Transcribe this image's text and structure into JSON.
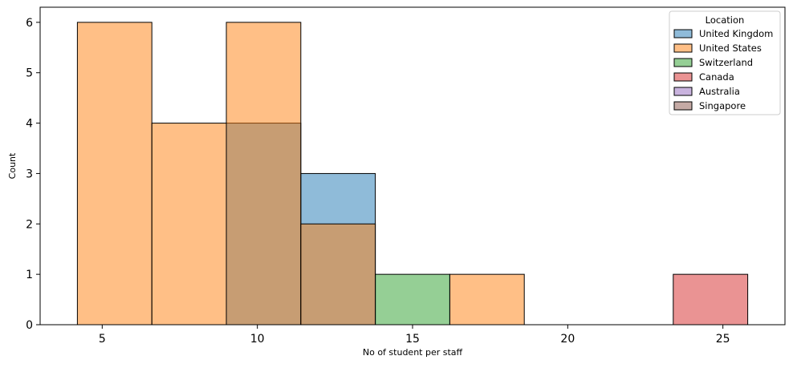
{
  "chart_data": {
    "type": "bar",
    "subtype": "histogram",
    "title": "",
    "xlabel": "No of student per staff",
    "ylabel": "Count",
    "xlim": [
      3.0,
      27.0
    ],
    "ylim": [
      0,
      6.3
    ],
    "xticks": [
      5,
      10,
      15,
      20,
      25
    ],
    "yticks": [
      0,
      1,
      2,
      3,
      4,
      5,
      6
    ],
    "grid": false,
    "bin_edges": [
      4.2,
      6.6,
      9.0,
      11.4,
      13.8,
      16.2,
      18.6,
      21.0,
      23.4,
      25.8
    ],
    "legend": {
      "title": "Location",
      "placement": "top-right"
    },
    "series": [
      {
        "name": "United Kingdom",
        "color": "#1f77b4",
        "counts": [
          0,
          0,
          4,
          3,
          0,
          0,
          0,
          0,
          0
        ]
      },
      {
        "name": "United States",
        "color": "#ff7f0e",
        "counts": [
          6,
          4,
          6,
          2,
          0,
          1,
          0,
          0,
          0
        ]
      },
      {
        "name": "Switzerland",
        "color": "#2ca02c",
        "counts": [
          0,
          0,
          0,
          0,
          1,
          0,
          0,
          0,
          0
        ]
      },
      {
        "name": "Canada",
        "color": "#d62728",
        "counts": [
          0,
          0,
          0,
          0,
          0,
          0,
          0,
          0,
          1
        ]
      },
      {
        "name": "Australia",
        "color": "#9467bd",
        "counts": [
          0,
          0,
          0,
          0,
          0,
          0,
          0,
          0,
          0
        ]
      },
      {
        "name": "Singapore",
        "color": "#8c564b",
        "counts": [
          0,
          0,
          0,
          0,
          0,
          0,
          0,
          0,
          0
        ]
      }
    ]
  }
}
